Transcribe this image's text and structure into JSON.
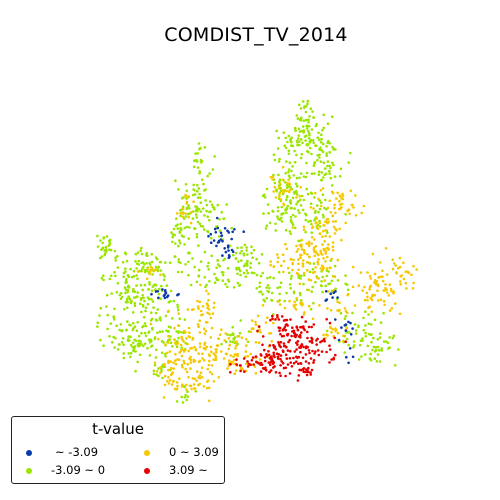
{
  "map": {
    "title": "COMDIST_TV_2014"
  },
  "legend": {
    "title": "t-value",
    "items": [
      {
        "label": "~ -3.09",
        "color": "#0a3aa8",
        "key": "low"
      },
      {
        "label": "-3.09 ~ 0",
        "color": "#99e600",
        "key": "midlow"
      },
      {
        "label": "0 ~ 3.09",
        "color": "#f5c800",
        "key": "midhigh"
      },
      {
        "label": "3.09 ~",
        "color": "#e60000",
        "key": "high"
      }
    ]
  }
}
